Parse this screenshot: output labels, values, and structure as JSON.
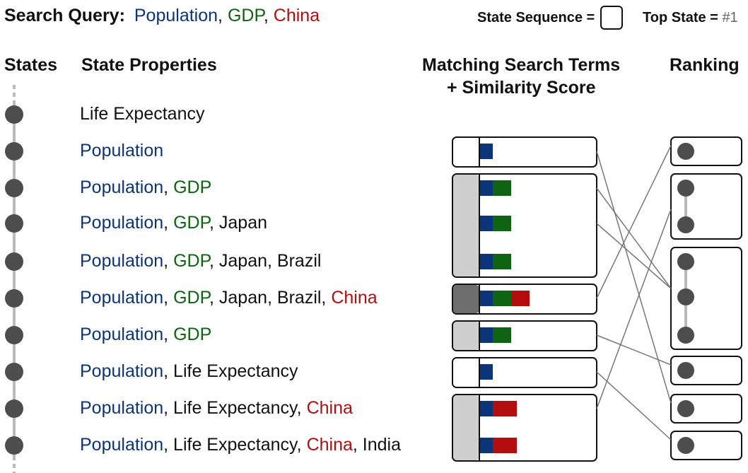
{
  "search": {
    "label": "Search Query:",
    "terms": [
      {
        "text": "Population",
        "color": "#0b3578"
      },
      {
        "text": ", ",
        "color": "#111111"
      },
      {
        "text": "GDP",
        "color": "#0e6412"
      },
      {
        "text": ", ",
        "color": "#111111"
      },
      {
        "text": "China",
        "color": "#b30d0d"
      }
    ]
  },
  "legend": {
    "state_sequence": "State Sequence =",
    "top_state": "Top State =",
    "top_marker": "#1"
  },
  "headers": {
    "states": "States",
    "properties": "State Properties",
    "matching_line1": "Matching Search Terms",
    "matching_line2": "+ Similarity Score",
    "ranking": "Ranking"
  },
  "term_colors": {
    "pop": "#0b3578",
    "gdp": "#0e6412",
    "chn": "#b30d0d"
  },
  "states": [
    {
      "id": "S0",
      "props": [
        {
          "t": "Life Expectancy",
          "c": "oth"
        }
      ],
      "score": "0",
      "terms": [],
      "top": ""
    },
    {
      "id": "S1",
      "props": [
        {
          "t": "Population",
          "c": "pop"
        }
      ],
      "score": "1",
      "terms": [
        "pop"
      ],
      "top": "#1"
    },
    {
      "id": "S2",
      "props": [
        {
          "t": "Population",
          "c": "pop"
        },
        {
          "t": ", ",
          "c": "oth"
        },
        {
          "t": "GDP",
          "c": "gdp"
        }
      ],
      "score": "2",
      "terms": [
        "pop",
        "gdp"
      ],
      "top": "#1"
    },
    {
      "id": "S3",
      "props": [
        {
          "t": "Population",
          "c": "pop"
        },
        {
          "t": ", ",
          "c": "oth"
        },
        {
          "t": "GDP",
          "c": "gdp"
        },
        {
          "t": ", Japan",
          "c": "oth"
        }
      ],
      "score": "2",
      "terms": [
        "pop",
        "gdp"
      ],
      "top": ""
    },
    {
      "id": "S4",
      "props": [
        {
          "t": "Population",
          "c": "pop"
        },
        {
          "t": ", ",
          "c": "oth"
        },
        {
          "t": "GDP",
          "c": "gdp"
        },
        {
          "t": ", Japan, Brazil",
          "c": "oth"
        }
      ],
      "score": "2",
      "terms": [
        "pop",
        "gdp"
      ],
      "top": ""
    },
    {
      "id": "S5",
      "props": [
        {
          "t": "Population",
          "c": "pop"
        },
        {
          "t": ", ",
          "c": "oth"
        },
        {
          "t": "GDP",
          "c": "gdp"
        },
        {
          "t": ", Japan, Brazil, ",
          "c": "oth"
        },
        {
          "t": "China",
          "c": "chn"
        }
      ],
      "score": "3",
      "terms": [
        "pop",
        "gdp",
        "chn"
      ],
      "top": "#1"
    },
    {
      "id": "S6",
      "props": [
        {
          "t": "Population",
          "c": "pop"
        },
        {
          "t": ", ",
          "c": "oth"
        },
        {
          "t": "GDP",
          "c": "gdp"
        }
      ],
      "score": "2",
      "terms": [
        "pop",
        "gdp"
      ],
      "top": "#1"
    },
    {
      "id": "S7",
      "props": [
        {
          "t": "Population",
          "c": "pop"
        },
        {
          "t": ", Life Expectancy",
          "c": "oth"
        }
      ],
      "score": "1",
      "terms": [
        "pop"
      ],
      "top": "#1"
    },
    {
      "id": "S8",
      "props": [
        {
          "t": "Population",
          "c": "pop"
        },
        {
          "t": ", Life Expectancy, ",
          "c": "oth"
        },
        {
          "t": "China",
          "c": "chn"
        }
      ],
      "score": "2",
      "terms": [
        "pop",
        "chn"
      ],
      "top": "#1"
    },
    {
      "id": "S9",
      "props": [
        {
          "t": "Population",
          "c": "pop"
        },
        {
          "t": ", Life Expectancy, ",
          "c": "oth"
        },
        {
          "t": "China",
          "c": "chn"
        },
        {
          "t": ", India",
          "c": "oth"
        }
      ],
      "score": "2",
      "terms": [
        "pop",
        "chn"
      ],
      "top": ""
    }
  ],
  "ranking": [
    {
      "states": [
        "S5"
      ]
    },
    {
      "states": [
        "S8",
        "S9"
      ]
    },
    {
      "states": [
        "S2",
        "S3",
        "S4"
      ]
    },
    {
      "states": [
        "S6"
      ]
    },
    {
      "states": [
        "S1"
      ]
    },
    {
      "states": [
        "S7"
      ]
    }
  ],
  "links": [
    {
      "from": "S1",
      "to": "S1"
    },
    {
      "from": "S2",
      "to": "S2"
    },
    {
      "from": "S5",
      "to": "S5"
    },
    {
      "from": "S6",
      "to": "S6"
    },
    {
      "from": "S7",
      "to": "S7"
    },
    {
      "from": "S8",
      "to": "S8"
    }
  ]
}
